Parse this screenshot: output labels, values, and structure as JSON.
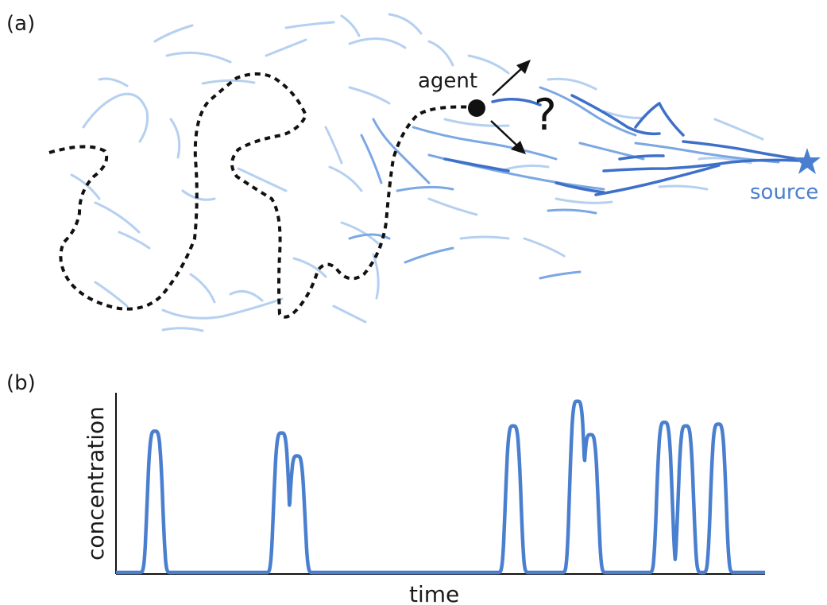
{
  "panel_a": {
    "label": "(a)",
    "agent_label": "agent",
    "question_mark": "?",
    "source_label": "source"
  },
  "panel_b": {
    "label": "(b)",
    "xlabel": "time",
    "ylabel": "concentration"
  },
  "colors": {
    "plume_light": "#a9c8ee",
    "plume_mid": "#6f9fe0",
    "plume_dark": "#3a6cc8",
    "trace": "#4a7fd0",
    "path": "#111111"
  },
  "icons": {
    "source": "star-icon",
    "agent": "filled-circle-icon"
  },
  "chart_data": {
    "type": "line",
    "xlabel": "time",
    "ylabel": "concentration",
    "grid": false,
    "x_ticks": false,
    "y_ticks": false,
    "ylim": [
      0,
      1
    ],
    "baseline": 0,
    "peaks": [
      {
        "t": 0.06,
        "height": 0.8
      },
      {
        "t": 0.255,
        "height": 0.79
      },
      {
        "t": 0.279,
        "height": 0.66
      },
      {
        "t": 0.612,
        "height": 0.83
      },
      {
        "t": 0.711,
        "height": 0.97
      },
      {
        "t": 0.731,
        "height": 0.78
      },
      {
        "t": 0.845,
        "height": 0.85
      },
      {
        "t": 0.878,
        "height": 0.83
      },
      {
        "t": 0.928,
        "height": 0.84
      }
    ]
  }
}
